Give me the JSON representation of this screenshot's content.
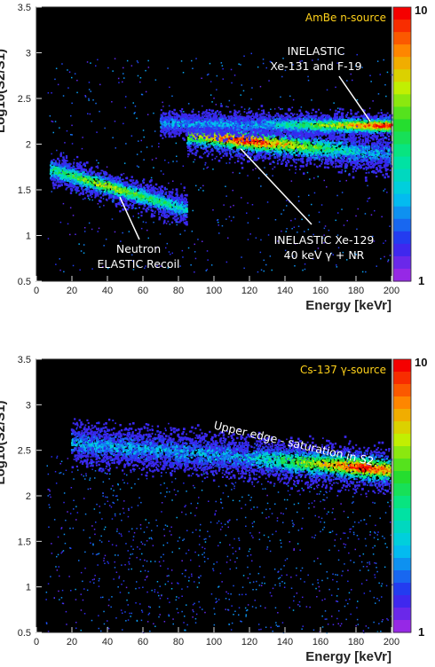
{
  "chart_data": [
    {
      "type": "heatmap",
      "source_label": "AmBe n-source",
      "xlabel": "Energy [keVr]",
      "ylabel": "Log10(S2/S1)",
      "xlim": [
        0,
        200
      ],
      "ylim": [
        0.5,
        3.5
      ],
      "xticks": [
        "0",
        "20",
        "40",
        "60",
        "80",
        "100",
        "120",
        "140",
        "160",
        "180",
        "200"
      ],
      "yticks": [
        "0.5",
        "1",
        "1.5",
        "2",
        "2.5",
        "3",
        "3.5"
      ],
      "colorbar": {
        "min": "1",
        "max": "10"
      },
      "annotations": [
        {
          "text": [
            "INELASTIC",
            "Xe-131 and F-19"
          ],
          "points_to": [
            188,
            2.25
          ]
        },
        {
          "text": [
            "INELASTIC Xe-129",
            "40 keV γ + NR"
          ],
          "points_to": [
            115,
            1.95
          ]
        },
        {
          "text": [
            "Neutron",
            "ELASTIC Recoil"
          ],
          "points_to": [
            47,
            1.42
          ]
        }
      ],
      "bands": [
        {
          "name": "elastic",
          "x_start": 8,
          "x_end": 85,
          "y_at_start": 1.72,
          "y_at_end": 1.28,
          "width": 0.14,
          "peak_x": 40,
          "peak_intensity": 0.7
        },
        {
          "name": "inelastic-129",
          "x_start": 85,
          "x_end": 200,
          "y_at_start": 2.1,
          "y_at_end": 1.88,
          "width": 0.18,
          "peak_x": 118,
          "peak_intensity": 1.0
        },
        {
          "name": "inelastic-131",
          "x_start": 70,
          "x_end": 200,
          "y_at_start": 2.22,
          "y_at_end": 2.2,
          "width": 0.12,
          "peak_x": 195,
          "peak_intensity": 1.0
        }
      ]
    },
    {
      "type": "heatmap",
      "source_label": "Cs-137 γ-source",
      "xlabel": "Energy [keVr]",
      "ylabel": "Log10(S2/S1)",
      "xlim": [
        0,
        200
      ],
      "ylim": [
        0.5,
        3.5
      ],
      "xticks": [
        "0",
        "20",
        "40",
        "60",
        "80",
        "100",
        "120",
        "140",
        "160",
        "180",
        "200"
      ],
      "yticks": [
        "0.5",
        "1",
        "1.5",
        "2",
        "2.5",
        "3",
        "3.5"
      ],
      "colorbar": {
        "min": "1",
        "max": "10"
      },
      "annotations": [
        {
          "text": [
            "Upper edge - saturation in S2"
          ],
          "rotation_deg": 13
        }
      ],
      "bands": [
        {
          "name": "gamma-band",
          "x_start": 20,
          "x_end": 200,
          "y_at_start": 2.58,
          "y_at_end": 2.28,
          "width": 0.2,
          "peak_x": 185,
          "peak_intensity": 1.0
        }
      ]
    }
  ]
}
